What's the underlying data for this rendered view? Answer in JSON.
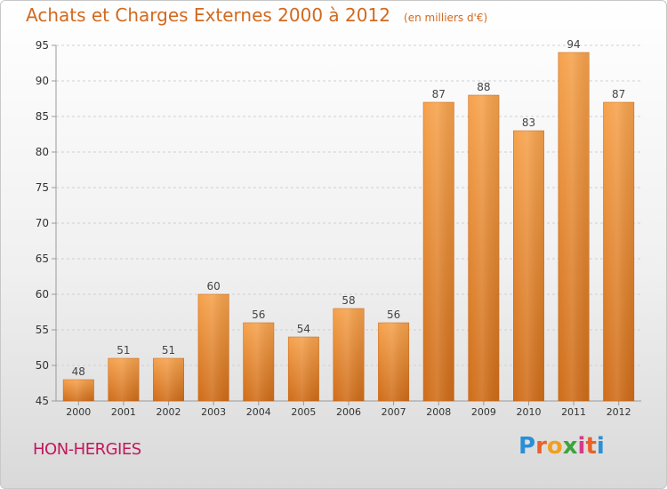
{
  "title": "Achats et Charges Externes 2000 à 2012",
  "subtitle": "(en milliers d'€)",
  "place": "HON-HERGIES",
  "logo": {
    "letters": [
      "P",
      "r",
      "o",
      "x",
      "i",
      "t",
      "i"
    ],
    "colors": [
      "#2a8fd6",
      "#e8622a",
      "#f0a020",
      "#3aa538",
      "#d63a8a",
      "#e8622a",
      "#2a8fd6"
    ]
  },
  "chart_data": {
    "type": "bar",
    "title": "Achats et Charges Externes 2000 à 2012",
    "subtitle": "(en milliers d'€)",
    "categories": [
      "2000",
      "2001",
      "2002",
      "2003",
      "2004",
      "2005",
      "2006",
      "2007",
      "2008",
      "2009",
      "2010",
      "2011",
      "2012"
    ],
    "values": [
      48,
      51,
      51,
      60,
      56,
      54,
      58,
      56,
      87,
      88,
      83,
      94,
      87
    ],
    "ylim": [
      45,
      95
    ],
    "yticks": [
      45,
      50,
      55,
      60,
      65,
      70,
      75,
      80,
      85,
      90,
      95
    ],
    "xlabel": "",
    "ylabel": "",
    "grid": true,
    "bar_color": "#f0963c",
    "bar_color_dark": "#d2691e"
  }
}
